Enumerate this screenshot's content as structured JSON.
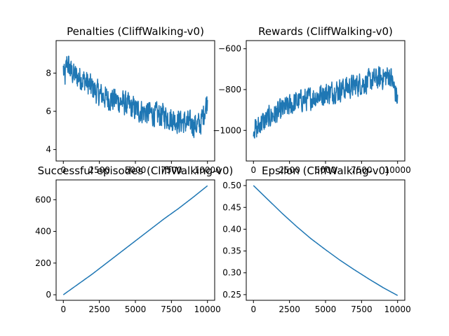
{
  "figure": {
    "line_color": "#1f77b4"
  },
  "chart_data": [
    {
      "type": "line",
      "title": "Penalties (CliffWalking-v0)",
      "xlabel": "",
      "ylabel": "",
      "xlim": [
        -500,
        10500
      ],
      "ylim": [
        3.4,
        9.7
      ],
      "xticks": [
        0,
        2500,
        5000,
        7500,
        10000
      ],
      "xtick_labels": [
        "0",
        "2500",
        "5000",
        "7500",
        "10000"
      ],
      "yticks": [
        4,
        6,
        8
      ],
      "ytick_labels": [
        "4",
        "6",
        "8"
      ],
      "yaxis_side": "left",
      "grid": false,
      "noisy": true,
      "noise_amplitude": 0.8,
      "series": [
        {
          "x": [
            0,
            100,
            250,
            500,
            750,
            1000,
            1500,
            2000,
            2500,
            3000,
            3500,
            4000,
            4500,
            5000,
            5500,
            6000,
            6500,
            7000,
            7500,
            8000,
            8500,
            9000,
            9500,
            10000
          ],
          "values": [
            8.2,
            7.6,
            8.6,
            8.1,
            7.9,
            7.8,
            7.6,
            7.2,
            6.9,
            6.7,
            6.6,
            6.5,
            6.3,
            6.1,
            6.0,
            5.9,
            5.8,
            5.8,
            5.6,
            5.5,
            5.4,
            5.3,
            5.3,
            6.6
          ]
        }
      ]
    },
    {
      "type": "line",
      "title": "Rewards (CliffWalking-v0)",
      "xlabel": "",
      "ylabel": "",
      "xlim": [
        -500,
        10500
      ],
      "ylim": [
        -1150,
        -560
      ],
      "xticks": [
        0,
        2500,
        5000,
        7500,
        10000
      ],
      "xtick_labels": [
        "0",
        "2500",
        "5000",
        "7500",
        "10000"
      ],
      "yticks": [
        -1000,
        -800,
        -600
      ],
      "ytick_labels": [
        "−1000",
        "−800",
        "−600"
      ],
      "yaxis_side": "left",
      "grid": false,
      "noisy": true,
      "noise_amplitude": 70,
      "series": [
        {
          "x": [
            0,
            250,
            500,
            750,
            1000,
            1500,
            2000,
            2500,
            3000,
            3500,
            4000,
            4500,
            5000,
            5500,
            6000,
            6500,
            7000,
            7500,
            8000,
            8500,
            9000,
            9500,
            10000
          ],
          "values": [
            -980,
            -1000,
            -960,
            -960,
            -940,
            -920,
            -900,
            -880,
            -860,
            -850,
            -840,
            -830,
            -820,
            -810,
            -800,
            -790,
            -780,
            -770,
            -760,
            -750,
            -740,
            -730,
            -850
          ]
        }
      ]
    },
    {
      "type": "line",
      "title": "Successful episodes (CliffWalking-v0)",
      "xlabel": "",
      "ylabel": "",
      "xlim": [
        -500,
        10500
      ],
      "ylim": [
        -35,
        725
      ],
      "xticks": [
        0,
        2500,
        5000,
        7500,
        10000
      ],
      "xtick_labels": [
        "0",
        "2500",
        "5000",
        "7500",
        "10000"
      ],
      "yticks": [
        0,
        200,
        400,
        600
      ],
      "ytick_labels": [
        "0",
        "200",
        "400",
        "600"
      ],
      "yaxis_side": "left",
      "grid": false,
      "noisy": false,
      "series": [
        {
          "x": [
            0,
            1000,
            2000,
            3000,
            4000,
            5000,
            6000,
            7000,
            8000,
            9000,
            10000
          ],
          "values": [
            0,
            65,
            130,
            200,
            270,
            340,
            410,
            480,
            545,
            615,
            688
          ]
        }
      ]
    },
    {
      "type": "line",
      "title": "Epsilon (CliffWalking-v0)",
      "xlabel": "",
      "ylabel": "",
      "xlim": [
        -500,
        10500
      ],
      "ylim": [
        0.237,
        0.513
      ],
      "xticks": [
        0,
        2500,
        5000,
        7500,
        10000
      ],
      "xtick_labels": [
        "0",
        "2500",
        "5000",
        "7500",
        "10000"
      ],
      "yticks": [
        0.25,
        0.3,
        0.35,
        0.4,
        0.45,
        0.5
      ],
      "ytick_labels": [
        "0.25",
        "0.30",
        "0.35",
        "0.40",
        "0.45",
        "0.50"
      ],
      "yaxis_side": "left",
      "grid": false,
      "noisy": false,
      "series": [
        {
          "x": [
            0,
            1000,
            2000,
            3000,
            4000,
            5000,
            6000,
            7000,
            8000,
            9000,
            10000
          ],
          "values": [
            0.5,
            0.468,
            0.436,
            0.406,
            0.378,
            0.353,
            0.329,
            0.307,
            0.286,
            0.266,
            0.248
          ]
        }
      ]
    }
  ]
}
